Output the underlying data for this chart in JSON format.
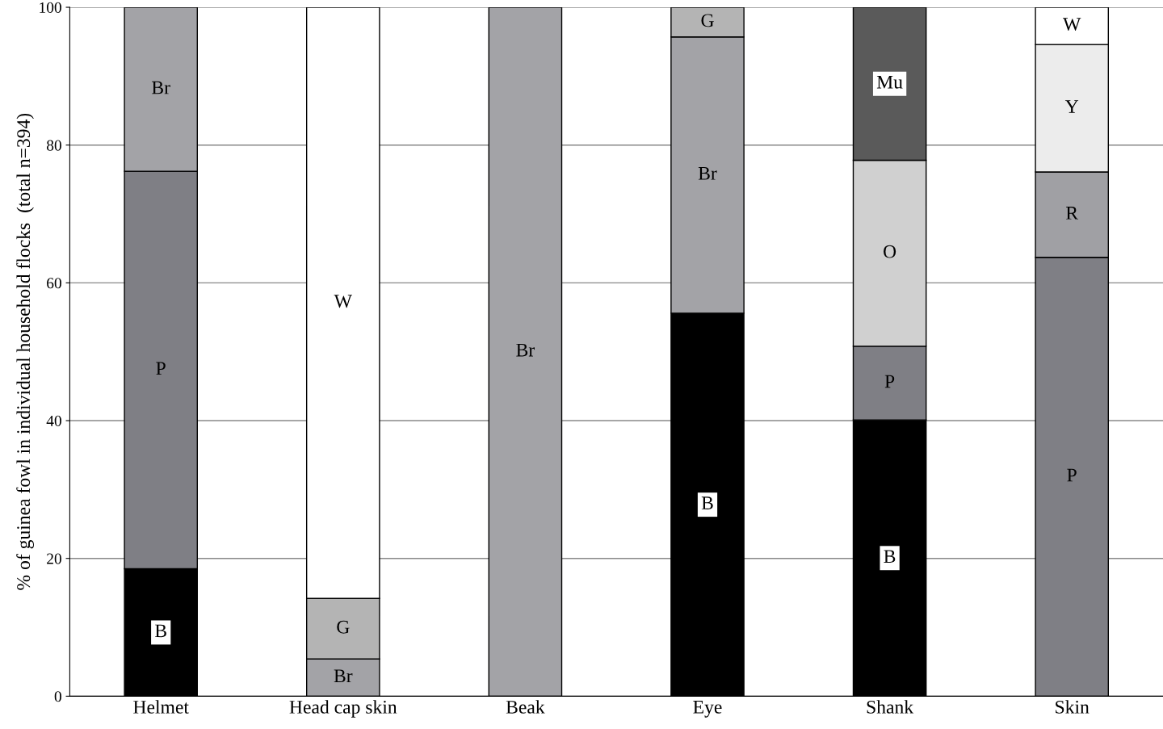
{
  "chart_data": {
    "type": "bar",
    "stacked": true,
    "ylabel": "% of guinea fowl in individual household flocks  (total n=394)",
    "categories": [
      "Helmet",
      "Head cap skin",
      "Beak",
      "Eye",
      "Shank",
      "Skin"
    ],
    "series": [
      {
        "name": "B",
        "color": "#000000",
        "values": [
          18.5,
          null,
          null,
          55.6,
          40.1,
          null
        ]
      },
      {
        "name": "P",
        "color": "#7f7f85",
        "values": [
          57.7,
          null,
          null,
          null,
          10.7,
          63.7
        ]
      },
      {
        "name": "Br",
        "color": "#a3a3a7",
        "values": [
          23.8,
          5.4,
          100,
          40.1,
          null,
          null
        ]
      },
      {
        "name": "R",
        "color": "#a0a0a4",
        "values": [
          null,
          null,
          null,
          null,
          null,
          12.4
        ]
      },
      {
        "name": "O",
        "color": "#d0d0d0",
        "values": [
          null,
          null,
          null,
          null,
          27.0,
          null
        ]
      },
      {
        "name": "G",
        "color": "#b4b4b4",
        "values": [
          null,
          8.8,
          null,
          4.3,
          null,
          null
        ]
      },
      {
        "name": "Y",
        "color": "#ececec",
        "values": [
          null,
          null,
          null,
          null,
          null,
          18.5
        ]
      },
      {
        "name": "W",
        "color": "#ffffff",
        "values": [
          null,
          85.8,
          null,
          null,
          null,
          5.4
        ]
      },
      {
        "name": "Mu",
        "color": "#5a5a5a",
        "values": [
          null,
          null,
          null,
          null,
          22.2,
          null
        ]
      }
    ],
    "ylim": [
      0,
      100
    ],
    "yticks": [
      0,
      20,
      40,
      60,
      80,
      100
    ],
    "grid": "y",
    "legend": false
  }
}
